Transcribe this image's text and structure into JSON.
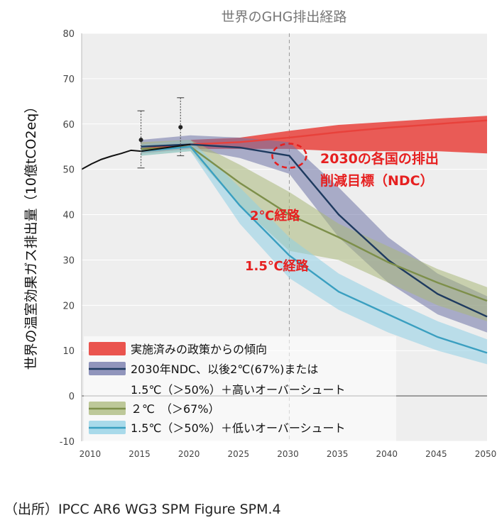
{
  "chart_data": {
    "type": "area",
    "title": "世界のGHG排出経路",
    "ylabel": "世界の温室効果ガス排出量（10億tCO2eq）",
    "xlabel": "",
    "x_ticks": [
      "2010",
      "2015",
      "2020",
      "2025",
      "2030",
      "2035",
      "2040",
      "2045",
      "2050"
    ],
    "y_ticks": [
      "80",
      "70",
      "60",
      "50",
      "40",
      "30",
      "20",
      "10",
      "0",
      "-10"
    ],
    "xlim": [
      2009,
      2050
    ],
    "ylim": [
      -10,
      80
    ],
    "historical": {
      "x": [
        2009,
        2010,
        2011,
        2012,
        2013,
        2014,
        2015,
        2016,
        2017,
        2018,
        2019,
        2020
      ],
      "y": [
        50.0,
        51.2,
        52.2,
        52.9,
        53.5,
        54.2,
        54.0,
        54.3,
        54.6,
        54.9,
        55.2,
        55.5
      ]
    },
    "markers": [
      {
        "x": 2015,
        "y": 56.5,
        "low": 50.3,
        "high": 62.9
      },
      {
        "x": 2019,
        "y": 59.3,
        "low": 53.0,
        "high": 65.8
      }
    ],
    "series": [
      {
        "name": "実施済みの政策からの傾向",
        "color": "#e8413b",
        "x": [
          2015,
          2020,
          2025,
          2030,
          2035,
          2040,
          2045,
          2050
        ],
        "lower": [
          53.5,
          54.5,
          54.5,
          54.5,
          54.0,
          54.0,
          54.0,
          53.5
        ],
        "upper": [
          55.5,
          56.5,
          57.0,
          58.5,
          59.8,
          60.5,
          61.2,
          61.8
        ],
        "median": [
          54.5,
          55.5,
          56.0,
          57.0,
          58.2,
          59.2,
          60.0,
          60.8
        ]
      },
      {
        "name": "2030年NDC、以後2℃(67%)または1.5℃（＞50%）＋高いオーバーシュート",
        "color": "#1e3a5f",
        "band_color": "#6f74a8",
        "x": [
          2015,
          2020,
          2025,
          2030,
          2035,
          2040,
          2045,
          2050
        ],
        "lower": [
          53.5,
          54.5,
          52.5,
          49.0,
          35.0,
          25.0,
          18.0,
          14.0
        ],
        "upper": [
          56.5,
          57.5,
          57.0,
          56.0,
          46.0,
          35.0,
          27.0,
          22.0
        ],
        "median": [
          55.0,
          55.5,
          54.8,
          53.0,
          40.0,
          30.0,
          22.5,
          17.5
        ]
      },
      {
        "name": "2℃（＞67%）",
        "color": "#7d8f4a",
        "band_color": "#a9b87a",
        "x": [
          2015,
          2020,
          2025,
          2030,
          2035,
          2040,
          2045,
          2050
        ],
        "lower": [
          53.0,
          54.0,
          42.0,
          32.0,
          30.0,
          25.0,
          20.0,
          16.5
        ],
        "upper": [
          56.0,
          56.5,
          51.0,
          45.0,
          38.0,
          33.0,
          28.0,
          24.0
        ],
        "median": [
          54.5,
          55.0,
          47.0,
          40.0,
          35.0,
          29.5,
          25.0,
          21.0
        ]
      },
      {
        "name": "1.5℃（＞50%）＋低いオーバーシュート",
        "color": "#3a9fc0",
        "band_color": "#8fd0e6",
        "x": [
          2015,
          2020,
          2025,
          2030,
          2035,
          2040,
          2045,
          2050
        ],
        "lower": [
          53.0,
          54.0,
          38.0,
          26.0,
          19.0,
          14.0,
          10.0,
          7.0
        ],
        "upper": [
          55.5,
          56.5,
          46.0,
          35.0,
          27.0,
          21.5,
          16.5,
          12.5
        ],
        "median": [
          54.0,
          55.0,
          42.0,
          31.0,
          23.0,
          18.0,
          13.0,
          9.5
        ]
      }
    ],
    "annotations": [
      {
        "text": "2030の各国の排出",
        "color": "#e62020"
      },
      {
        "text": "削減目標（NDC）",
        "color": "#e62020"
      },
      {
        "text": "2℃経路",
        "color": "#e62020"
      },
      {
        "text": "1.5℃経路",
        "color": "#e62020"
      }
    ],
    "legend_placement": "bottom-left",
    "legend_labels": [
      "実施済みの政策からの傾向",
      "2030年NDC、以後2℃(67%)または",
      "1.5℃（＞50%）＋高いオーバーシュート",
      "２℃　（＞67%）",
      "1.5℃（＞50%）＋低いオーバーシュート"
    ],
    "grid": true
  },
  "source_note": "（出所）IPCC AR6 WG3 SPM Figure SPM.4"
}
